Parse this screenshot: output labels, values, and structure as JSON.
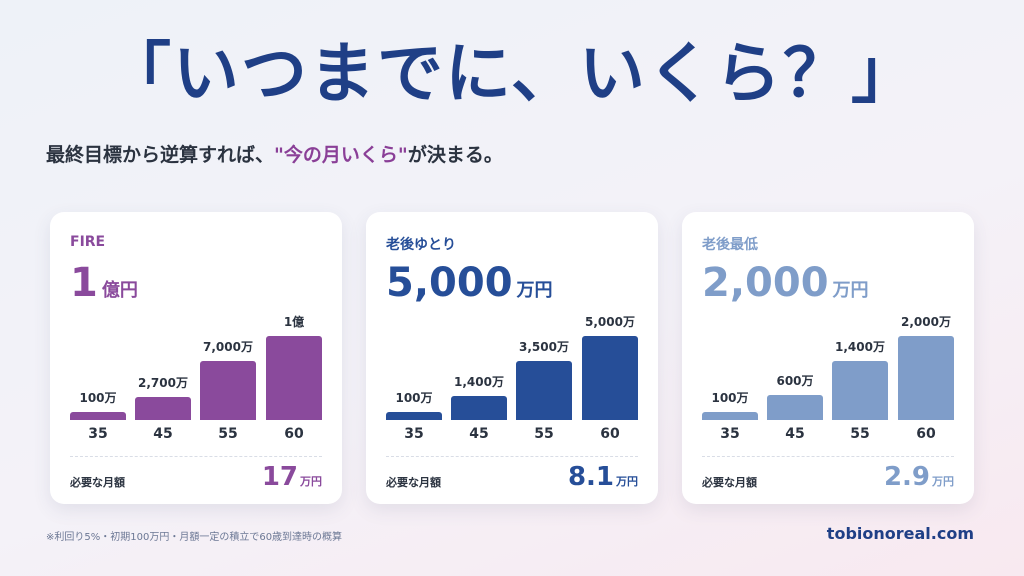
{
  "headline": "「いつまでに、いくら？」",
  "subtitle": {
    "before": "最終目標から逆算すれば、",
    "highlight": "\"今の月いくら\"",
    "after": "が決まる。"
  },
  "cards": [
    {
      "title": "FIRE",
      "amount_number": "1",
      "amount_unit": "億円",
      "accent_color": "#8a4a9c",
      "bars": [
        {
          "label": "100万",
          "value": 1000000
        },
        {
          "label": "2,700万",
          "value": 27000000
        },
        {
          "label": "7,000万",
          "value": 70000000
        },
        {
          "label": "1億",
          "value": 100000000
        }
      ],
      "monthly_label": "必要な月額",
      "monthly_number": "17",
      "monthly_unit": "万円"
    },
    {
      "title": "老後ゆとり",
      "amount_number": "5,000",
      "amount_unit": "万円",
      "accent_color": "#264e98",
      "bars": [
        {
          "label": "100万",
          "value": 1000000
        },
        {
          "label": "1,400万",
          "value": 14000000
        },
        {
          "label": "3,500万",
          "value": 35000000
        },
        {
          "label": "5,000万",
          "value": 50000000
        }
      ],
      "monthly_label": "必要な月額",
      "monthly_number": "8.1",
      "monthly_unit": "万円"
    },
    {
      "title": "老後最低",
      "amount_number": "2,000",
      "amount_unit": "万円",
      "accent_color": "#7f9dc9",
      "bars": [
        {
          "label": "100万",
          "value": 1000000
        },
        {
          "label": "600万",
          "value": 6000000
        },
        {
          "label": "1,400万",
          "value": 14000000
        },
        {
          "label": "2,000万",
          "value": 20000000
        }
      ],
      "monthly_label": "必要な月額",
      "monthly_number": "2.9",
      "monthly_unit": "万円"
    }
  ],
  "ages": [
    "35",
    "45",
    "55",
    "60"
  ],
  "footnote": "※利回り5%・初期100万円・月額一定の積立で60歳到達時の概算",
  "site": "tobionoreal.com",
  "colors": {
    "headline": "#1f3f86",
    "highlight": "#8a3f97"
  }
}
